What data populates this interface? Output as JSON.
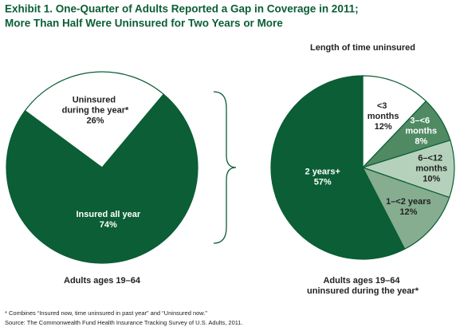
{
  "title_lines": [
    "Exhibit 1. One-Quarter of Adults Reported a Gap in Coverage in 2011;",
    "More Than Half Were Uninsured for Two Years or More"
  ],
  "chart_data": [
    {
      "type": "pie",
      "caption": "Adults ages 19–64",
      "categories": [
        "Insured all year",
        "Uninsured during the year*"
      ],
      "values": [
        74,
        26
      ],
      "value_labels": [
        "74%",
        "26%"
      ],
      "colors": [
        "#0b5e35",
        "#ffffff"
      ]
    },
    {
      "type": "pie",
      "title": "Length of time uninsured",
      "caption": "Adults ages 19–64 uninsured during the year*",
      "categories": [
        "<3 months",
        "3–<6 months",
        "6–<12 months",
        "1–<2 years",
        "2 years+"
      ],
      "values": [
        12,
        8,
        10,
        12,
        57
      ],
      "value_labels": [
        "12%",
        "8%",
        "10%",
        "12%",
        "57%"
      ],
      "colors": [
        "#ffffff",
        "#4f8a63",
        "#b5d1bc",
        "#86ad90",
        "#0b5e35"
      ]
    }
  ],
  "footnotes": [
    "* Combines “Insured now, time uninsured in past year” and “Uninsured now.”",
    "Source: The Commonwealth Fund Health Insurance Tracking Survey of U.S. Adults, 2011."
  ]
}
